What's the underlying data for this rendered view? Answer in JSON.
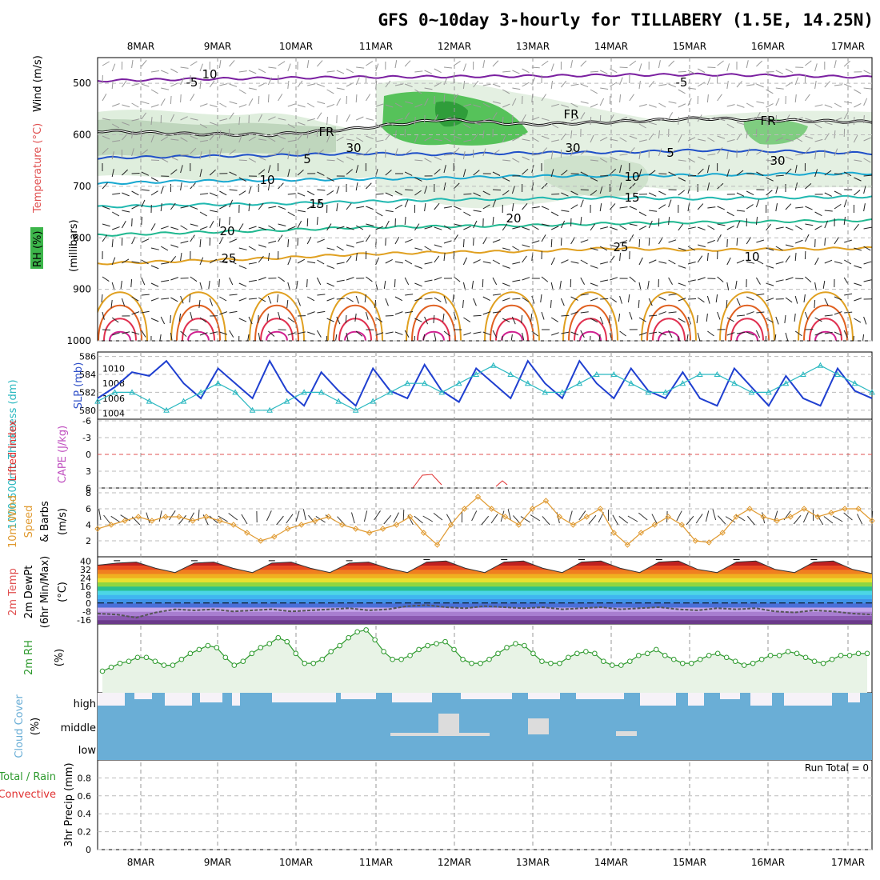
{
  "title": "GFS 0~10day 3-hourly for TILLABERY (1.5E, 14.25N)",
  "date_labels": [
    "8MAR",
    "9MAR",
    "10MAR",
    "11MAR",
    "12MAR",
    "13MAR",
    "14MAR",
    "15MAR",
    "16MAR",
    "17MAR"
  ],
  "colors": {
    "dewpt_band": "#555555",
    "rh_line": "#2e9a2e",
    "cloud": "#6aaed6",
    "cloud_clear": "#f6f2f8",
    "slp": "#1f3fd0",
    "thickness": "#2ab8c0",
    "wind10": "#e09a30",
    "li": "#e03030",
    "cape": "#c050c0"
  },
  "chart_data": [
    {
      "panel": "upper-air",
      "type": "contour",
      "ylabel_rh": "RH (%)",
      "ylabel_temp": "Temperature (°C)",
      "ylabel_wind": "Wind (m/s)",
      "yaxis_label": "(millibars)",
      "yticks": [
        500,
        600,
        700,
        800,
        900,
        1000
      ],
      "ylim": [
        1000,
        450
      ],
      "contour_labels": [
        "-5",
        "-5",
        "FR",
        "FR",
        "FR",
        "5",
        "5",
        "10",
        "10",
        "15",
        "15",
        "20",
        "20",
        "25",
        "25",
        "10",
        "10",
        "30",
        "30",
        "30"
      ],
      "isotherms": [
        {
          "label": "-5",
          "color": "#7a1fa0",
          "levels": [
            495,
            492,
            490,
            488,
            487,
            486,
            484,
            483,
            485,
            488
          ]
        },
        {
          "label": "FR",
          "color": "#111111",
          "levels": [
            592,
            598,
            600,
            588,
            570,
            580,
            575,
            568,
            572,
            575
          ]
        },
        {
          "label": "5",
          "color": "#2050c8",
          "levels": [
            645,
            642,
            640,
            636,
            638,
            635,
            634,
            630,
            632,
            636
          ]
        },
        {
          "label": "10",
          "color": "#18a8d0",
          "levels": [
            695,
            690,
            688,
            686,
            684,
            680,
            680,
            678,
            676,
            675
          ]
        },
        {
          "label": "15",
          "color": "#20b8b0",
          "levels": [
            740,
            736,
            734,
            730,
            726,
            724,
            722,
            724,
            722,
            720
          ]
        },
        {
          "label": "20",
          "color": "#20b890",
          "levels": [
            795,
            790,
            786,
            780,
            778,
            776,
            772,
            770,
            768,
            766
          ]
        },
        {
          "label": "25",
          "color": "#e0a020",
          "levels": [
            850,
            845,
            840,
            832,
            828,
            826,
            820,
            824,
            822,
            820
          ]
        }
      ]
    },
    {
      "panel": "slp-thickness",
      "type": "line",
      "ylabel_thickness": "1000-500mb Thickness (dm)",
      "ylabel_slp": "SLP (mb)",
      "thickness_ticks": [
        580,
        582,
        584,
        586
      ],
      "slp_ticks": [
        1004,
        1006,
        1008,
        1010
      ],
      "series": [
        {
          "name": "SLP (mb)",
          "values": [
            1006,
            1007.5,
            1009.5,
            1009,
            1011,
            1008,
            1006,
            1010,
            1008,
            1006,
            1011,
            1007,
            1005,
            1009.5,
            1007,
            1005,
            1010,
            1007,
            1006,
            1010.5,
            1007,
            1005.5,
            1010,
            1008,
            1006,
            1011,
            1008,
            1006,
            1011,
            1008,
            1006,
            1010,
            1007,
            1006,
            1009.5,
            1006,
            1005,
            1010,
            1007.5,
            1005,
            1009,
            1006,
            1005,
            1010,
            1007,
            1006
          ]
        },
        {
          "name": "1000-500mb Thickness (dm)",
          "values": [
            581,
            582,
            582,
            581,
            580,
            581,
            582,
            583,
            582,
            580,
            580,
            581,
            582,
            582,
            581,
            580,
            581,
            582,
            583,
            583,
            582,
            583,
            584,
            585,
            584,
            583,
            582,
            582,
            583,
            584,
            584,
            583,
            582,
            582,
            583,
            584,
            584,
            583,
            582,
            582,
            583,
            584,
            585,
            584,
            583,
            582
          ]
        }
      ]
    },
    {
      "panel": "li-cape",
      "type": "line",
      "ylabel_li": "Lifted Index",
      "ylabel_cape": "CAPE (J/kg)",
      "yticks": [
        "6",
        "3",
        "0",
        "-3",
        "-6"
      ],
      "ylim": [
        6,
        -6
      ]
    },
    {
      "panel": "wind10m",
      "type": "line",
      "ylabel": "10m Wind Speed & Barbs (m/s)",
      "yticks": [
        2,
        4,
        6,
        8
      ],
      "ylim": [
        0,
        8
      ],
      "series": [
        {
          "name": "10m Wind Speed",
          "values": [
            3.5,
            4,
            4.5,
            5,
            4.5,
            5,
            5,
            4.5,
            5,
            4.5,
            4,
            3,
            2,
            2.5,
            3.5,
            4,
            4.5,
            5,
            4,
            3.5,
            3,
            3.5,
            4,
            5,
            3,
            1.5,
            4,
            6,
            7.5,
            6,
            5,
            4,
            6,
            7,
            5,
            4,
            5,
            6,
            3,
            1.5,
            3,
            4,
            5,
            4,
            2,
            1.8,
            3,
            5,
            6,
            5,
            4.5,
            5,
            6,
            5,
            5.5,
            6,
            6,
            4.5
          ]
        }
      ]
    },
    {
      "panel": "temp2m",
      "type": "area",
      "ylabel": "2m Temp 2m DewPt (6hr Min/Max) (°C)",
      "yticks": [
        "40",
        "32",
        "24",
        "16",
        "8",
        "0",
        "-8",
        "-16"
      ],
      "ylim": [
        -20,
        44
      ],
      "series": [
        {
          "name": "2m Temp",
          "values": [
            36,
            38,
            39,
            33,
            29,
            38,
            39,
            33,
            29,
            38,
            39,
            33,
            29,
            38,
            39,
            33,
            29,
            39,
            40,
            33,
            29,
            39,
            40,
            33,
            29,
            39,
            40,
            33,
            29,
            39,
            40,
            32,
            29,
            39,
            40,
            32,
            29,
            39,
            40,
            32,
            28
          ]
        },
        {
          "name": "2m DewPt",
          "values": [
            -10,
            -11,
            -14,
            -9,
            -6,
            -7,
            -6,
            -8,
            -7,
            -6,
            -8,
            -7,
            -6,
            -5,
            -7,
            -6,
            -3,
            -2,
            -4,
            -5,
            -3,
            -4,
            -5,
            -4,
            -6,
            -5,
            -4,
            -6,
            -5,
            -4,
            -6,
            -7,
            -5,
            -6,
            -5,
            -8,
            -9,
            -7,
            -8,
            -10,
            -11
          ]
        }
      ]
    },
    {
      "panel": "rh2m",
      "type": "line",
      "ylabel": "2m RH (%)",
      "ylim": [
        0,
        35
      ],
      "series": [
        {
          "name": "2m RH",
          "values": [
            11,
            13,
            15,
            16,
            18,
            18,
            16,
            14,
            14,
            17,
            20,
            22,
            24,
            23,
            18,
            14,
            16,
            20,
            23,
            25,
            28,
            26,
            20,
            15,
            15,
            17,
            21,
            24,
            28,
            31,
            32,
            27,
            21,
            17,
            17,
            19,
            22,
            24,
            25,
            26,
            22,
            17,
            15,
            15,
            17,
            20,
            23,
            25,
            24,
            20,
            16,
            15,
            15,
            18,
            20,
            21,
            20,
            16,
            14,
            14,
            16,
            19,
            20,
            22,
            19,
            17,
            15,
            15,
            17,
            19,
            20,
            18,
            16,
            14,
            15,
            17,
            19,
            19,
            21,
            20,
            18,
            16,
            15,
            17,
            19,
            19,
            20,
            20
          ]
        }
      ]
    },
    {
      "panel": "cloud",
      "type": "heatmap",
      "ylabel": "Cloud Cover (%)",
      "row_labels": [
        "high",
        "middle",
        "low"
      ]
    },
    {
      "panel": "precip",
      "type": "bar",
      "ylabel": "3hr Precip (mm)",
      "legend_total": "Total / Rain",
      "legend_conv": "Convective",
      "yticks": [
        "0",
        "0.2",
        "0.4",
        "0.6",
        "0.8"
      ],
      "ylim": [
        0,
        1
      ],
      "run_total": "Run Total = 0"
    }
  ]
}
